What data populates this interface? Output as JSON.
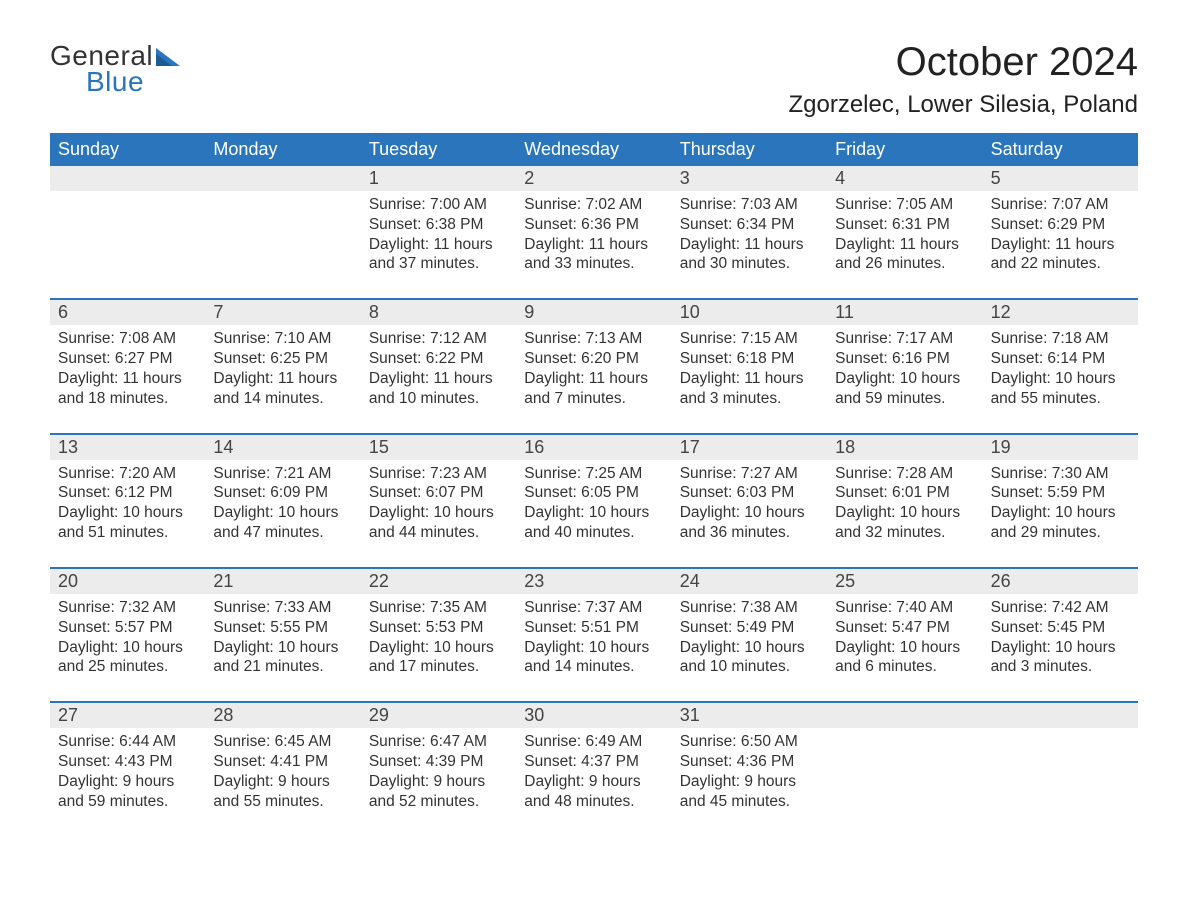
{
  "colors": {
    "header_bg": "#2a75bb",
    "header_text": "#ffffff",
    "daynum_bg": "#ececec",
    "week_border": "#2a75bb",
    "body_text": "#333333",
    "logo_blue": "#2a75bb",
    "logo_dark": "#333333",
    "page_bg": "#ffffff"
  },
  "typography": {
    "title_fontsize": 40,
    "location_fontsize": 24,
    "dayheader_fontsize": 18,
    "daynum_fontsize": 18,
    "cell_fontsize": 15.5,
    "logo_fontsize": 28
  },
  "logo": {
    "line1": "General",
    "line2": "Blue"
  },
  "title": "October 2024",
  "location": "Zgorzelec, Lower Silesia, Poland",
  "day_names": [
    "Sunday",
    "Monday",
    "Tuesday",
    "Wednesday",
    "Thursday",
    "Friday",
    "Saturday"
  ],
  "weeks": [
    {
      "nums": [
        "",
        "",
        "1",
        "2",
        "3",
        "4",
        "5"
      ],
      "cells": [
        {
          "sunrise": "",
          "sunset": "",
          "daylight1": "",
          "daylight2": ""
        },
        {
          "sunrise": "",
          "sunset": "",
          "daylight1": "",
          "daylight2": ""
        },
        {
          "sunrise": "Sunrise: 7:00 AM",
          "sunset": "Sunset: 6:38 PM",
          "daylight1": "Daylight: 11 hours",
          "daylight2": "and 37 minutes."
        },
        {
          "sunrise": "Sunrise: 7:02 AM",
          "sunset": "Sunset: 6:36 PM",
          "daylight1": "Daylight: 11 hours",
          "daylight2": "and 33 minutes."
        },
        {
          "sunrise": "Sunrise: 7:03 AM",
          "sunset": "Sunset: 6:34 PM",
          "daylight1": "Daylight: 11 hours",
          "daylight2": "and 30 minutes."
        },
        {
          "sunrise": "Sunrise: 7:05 AM",
          "sunset": "Sunset: 6:31 PM",
          "daylight1": "Daylight: 11 hours",
          "daylight2": "and 26 minutes."
        },
        {
          "sunrise": "Sunrise: 7:07 AM",
          "sunset": "Sunset: 6:29 PM",
          "daylight1": "Daylight: 11 hours",
          "daylight2": "and 22 minutes."
        }
      ]
    },
    {
      "nums": [
        "6",
        "7",
        "8",
        "9",
        "10",
        "11",
        "12"
      ],
      "cells": [
        {
          "sunrise": "Sunrise: 7:08 AM",
          "sunset": "Sunset: 6:27 PM",
          "daylight1": "Daylight: 11 hours",
          "daylight2": "and 18 minutes."
        },
        {
          "sunrise": "Sunrise: 7:10 AM",
          "sunset": "Sunset: 6:25 PM",
          "daylight1": "Daylight: 11 hours",
          "daylight2": "and 14 minutes."
        },
        {
          "sunrise": "Sunrise: 7:12 AM",
          "sunset": "Sunset: 6:22 PM",
          "daylight1": "Daylight: 11 hours",
          "daylight2": "and 10 minutes."
        },
        {
          "sunrise": "Sunrise: 7:13 AM",
          "sunset": "Sunset: 6:20 PM",
          "daylight1": "Daylight: 11 hours",
          "daylight2": "and 7 minutes."
        },
        {
          "sunrise": "Sunrise: 7:15 AM",
          "sunset": "Sunset: 6:18 PM",
          "daylight1": "Daylight: 11 hours",
          "daylight2": "and 3 minutes."
        },
        {
          "sunrise": "Sunrise: 7:17 AM",
          "sunset": "Sunset: 6:16 PM",
          "daylight1": "Daylight: 10 hours",
          "daylight2": "and 59 minutes."
        },
        {
          "sunrise": "Sunrise: 7:18 AM",
          "sunset": "Sunset: 6:14 PM",
          "daylight1": "Daylight: 10 hours",
          "daylight2": "and 55 minutes."
        }
      ]
    },
    {
      "nums": [
        "13",
        "14",
        "15",
        "16",
        "17",
        "18",
        "19"
      ],
      "cells": [
        {
          "sunrise": "Sunrise: 7:20 AM",
          "sunset": "Sunset: 6:12 PM",
          "daylight1": "Daylight: 10 hours",
          "daylight2": "and 51 minutes."
        },
        {
          "sunrise": "Sunrise: 7:21 AM",
          "sunset": "Sunset: 6:09 PM",
          "daylight1": "Daylight: 10 hours",
          "daylight2": "and 47 minutes."
        },
        {
          "sunrise": "Sunrise: 7:23 AM",
          "sunset": "Sunset: 6:07 PM",
          "daylight1": "Daylight: 10 hours",
          "daylight2": "and 44 minutes."
        },
        {
          "sunrise": "Sunrise: 7:25 AM",
          "sunset": "Sunset: 6:05 PM",
          "daylight1": "Daylight: 10 hours",
          "daylight2": "and 40 minutes."
        },
        {
          "sunrise": "Sunrise: 7:27 AM",
          "sunset": "Sunset: 6:03 PM",
          "daylight1": "Daylight: 10 hours",
          "daylight2": "and 36 minutes."
        },
        {
          "sunrise": "Sunrise: 7:28 AM",
          "sunset": "Sunset: 6:01 PM",
          "daylight1": "Daylight: 10 hours",
          "daylight2": "and 32 minutes."
        },
        {
          "sunrise": "Sunrise: 7:30 AM",
          "sunset": "Sunset: 5:59 PM",
          "daylight1": "Daylight: 10 hours",
          "daylight2": "and 29 minutes."
        }
      ]
    },
    {
      "nums": [
        "20",
        "21",
        "22",
        "23",
        "24",
        "25",
        "26"
      ],
      "cells": [
        {
          "sunrise": "Sunrise: 7:32 AM",
          "sunset": "Sunset: 5:57 PM",
          "daylight1": "Daylight: 10 hours",
          "daylight2": "and 25 minutes."
        },
        {
          "sunrise": "Sunrise: 7:33 AM",
          "sunset": "Sunset: 5:55 PM",
          "daylight1": "Daylight: 10 hours",
          "daylight2": "and 21 minutes."
        },
        {
          "sunrise": "Sunrise: 7:35 AM",
          "sunset": "Sunset: 5:53 PM",
          "daylight1": "Daylight: 10 hours",
          "daylight2": "and 17 minutes."
        },
        {
          "sunrise": "Sunrise: 7:37 AM",
          "sunset": "Sunset: 5:51 PM",
          "daylight1": "Daylight: 10 hours",
          "daylight2": "and 14 minutes."
        },
        {
          "sunrise": "Sunrise: 7:38 AM",
          "sunset": "Sunset: 5:49 PM",
          "daylight1": "Daylight: 10 hours",
          "daylight2": "and 10 minutes."
        },
        {
          "sunrise": "Sunrise: 7:40 AM",
          "sunset": "Sunset: 5:47 PM",
          "daylight1": "Daylight: 10 hours",
          "daylight2": "and 6 minutes."
        },
        {
          "sunrise": "Sunrise: 7:42 AM",
          "sunset": "Sunset: 5:45 PM",
          "daylight1": "Daylight: 10 hours",
          "daylight2": "and 3 minutes."
        }
      ]
    },
    {
      "nums": [
        "27",
        "28",
        "29",
        "30",
        "31",
        "",
        ""
      ],
      "cells": [
        {
          "sunrise": "Sunrise: 6:44 AM",
          "sunset": "Sunset: 4:43 PM",
          "daylight1": "Daylight: 9 hours",
          "daylight2": "and 59 minutes."
        },
        {
          "sunrise": "Sunrise: 6:45 AM",
          "sunset": "Sunset: 4:41 PM",
          "daylight1": "Daylight: 9 hours",
          "daylight2": "and 55 minutes."
        },
        {
          "sunrise": "Sunrise: 6:47 AM",
          "sunset": "Sunset: 4:39 PM",
          "daylight1": "Daylight: 9 hours",
          "daylight2": "and 52 minutes."
        },
        {
          "sunrise": "Sunrise: 6:49 AM",
          "sunset": "Sunset: 4:37 PM",
          "daylight1": "Daylight: 9 hours",
          "daylight2": "and 48 minutes."
        },
        {
          "sunrise": "Sunrise: 6:50 AM",
          "sunset": "Sunset: 4:36 PM",
          "daylight1": "Daylight: 9 hours",
          "daylight2": "and 45 minutes."
        },
        {
          "sunrise": "",
          "sunset": "",
          "daylight1": "",
          "daylight2": ""
        },
        {
          "sunrise": "",
          "sunset": "",
          "daylight1": "",
          "daylight2": ""
        }
      ]
    }
  ]
}
